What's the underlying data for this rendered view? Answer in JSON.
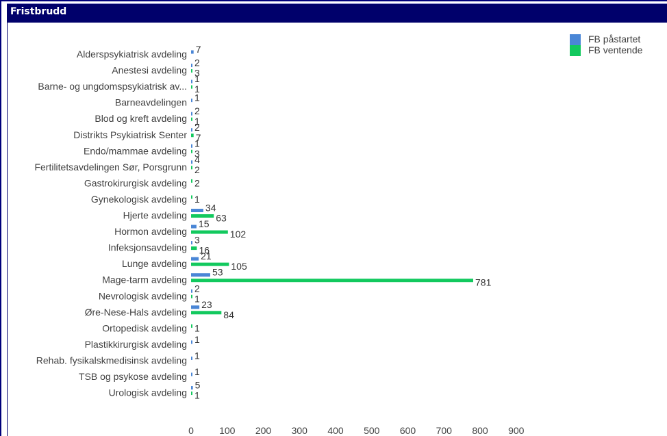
{
  "panel": {
    "title": "Fristbrudd"
  },
  "chart_data": {
    "type": "bar",
    "orientation": "horizontal",
    "title": "",
    "xlabel": "",
    "ylabel": "",
    "categories": [
      "Alderspsykiatrisk avdeling",
      "Anestesi avdeling",
      "Barne- og ungdomspsykiatrisk av...",
      "Barneavdelingen",
      "Blod og kreft avdeling",
      "Distrikts Psykiatrisk Senter",
      "Endo/mammae avdeling",
      "Fertilitetsavdelingen Sør, Porsgrunn",
      "Gastrokirurgisk avdeling",
      "Gynekologisk avdeling",
      "Hjerte avdeling",
      "Hormon avdeling",
      "Infeksjonsavdeling",
      "Lunge avdeling",
      "Mage-tarm avdeling",
      "Nevrologisk avdeling",
      "Øre-Nese-Hals avdeling",
      "Ortopedisk avdeling",
      "Plastikkirurgisk avdeling",
      "Rehab. fysikalskmedisinsk avdeling",
      "TSB og psykose avdeling",
      "Urologisk avdeling"
    ],
    "series": [
      {
        "name": "FB påstartet",
        "color": "#4a86d6",
        "values": [
          7,
          2,
          1,
          1,
          2,
          2,
          1,
          4,
          null,
          null,
          34,
          15,
          3,
          21,
          53,
          2,
          23,
          null,
          1,
          1,
          1,
          5
        ]
      },
      {
        "name": "FB ventende",
        "color": "#12c95e",
        "values": [
          null,
          3,
          1,
          null,
          1,
          7,
          3,
          2,
          2,
          1,
          63,
          102,
          16,
          105,
          781,
          1,
          84,
          1,
          null,
          null,
          null,
          1
        ]
      }
    ],
    "xlim": [
      0,
      900
    ],
    "xticks": [
      "0",
      "100",
      "200",
      "300",
      "400",
      "500",
      "600",
      "700",
      "800",
      "900"
    ],
    "legend_position": "top-right",
    "grid": false
  }
}
